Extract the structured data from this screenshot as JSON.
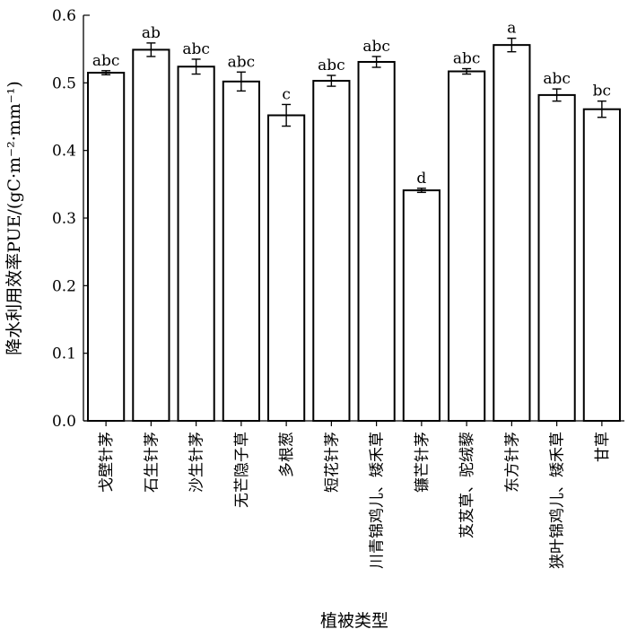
{
  "chart_data": {
    "type": "bar",
    "xlabel": "植被类型",
    "ylabel": "降水利用效率PUE/(gC·m⁻²·mm⁻¹)",
    "ylim": [
      0.0,
      0.6
    ],
    "yticks": [
      "0.0",
      "0.1",
      "0.2",
      "0.3",
      "0.4",
      "0.5",
      "0.6"
    ],
    "grid": false,
    "categories": [
      "戈壁针茅",
      "石生针茅",
      "沙生针茅",
      "无芒隐子草",
      "多根葱",
      "短花针茅",
      "川青锦鸡儿、矮禾草",
      "镰芒针茅",
      "芨芨草、驼绒藜",
      "东方针茅",
      "狭叶锦鸡儿、矮禾草",
      "甘草"
    ],
    "values": [
      0.515,
      0.549,
      0.524,
      0.502,
      0.452,
      0.503,
      0.531,
      0.341,
      0.517,
      0.556,
      0.482,
      0.461
    ],
    "errors": [
      0.003,
      0.01,
      0.011,
      0.014,
      0.016,
      0.008,
      0.008,
      0.003,
      0.004,
      0.01,
      0.009,
      0.012
    ],
    "significance": [
      "abc",
      "ab",
      "abc",
      "abc",
      "c",
      "abc",
      "abc",
      "d",
      "abc",
      "a",
      "abc",
      "bc"
    ]
  }
}
